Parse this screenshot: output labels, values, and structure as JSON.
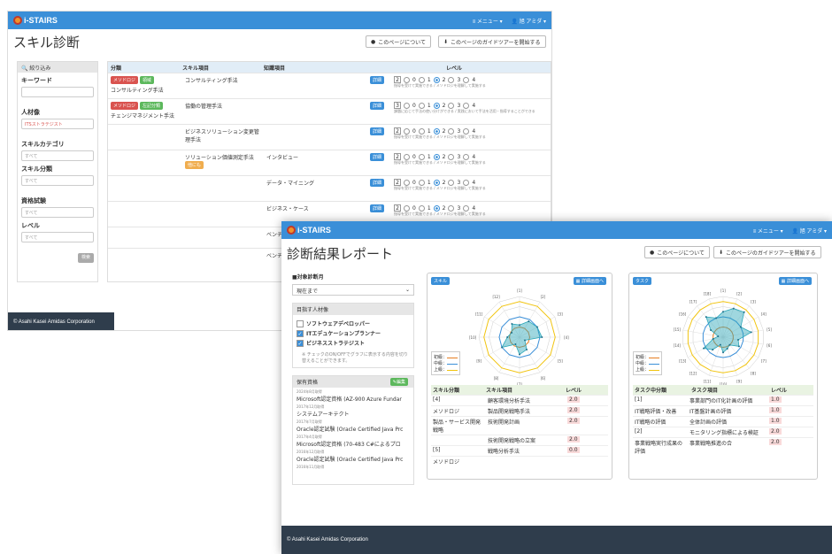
{
  "w1": {
    "logo": "i-STAIRS",
    "menu": "≡ メニュー ▾",
    "user": "👤 旭 アミダ ▾",
    "title": "スキル診断",
    "btn_about": "このページについて",
    "btn_tour": "このページのガイドツアーを開始する",
    "filter": {
      "head": "絞り込み",
      "keyword": "キーワード",
      "person": "人材像",
      "person_val": "ITSストラテジスト",
      "cat": "スキルカテゴリ",
      "cat_val": "すべて",
      "cls": "スキル分類",
      "cls_val": "すべて",
      "exam": "資格試験",
      "exam_val": "すべて",
      "level": "レベル",
      "level_val": "すべて",
      "search": "検索"
    },
    "cols": [
      "分類",
      "スキル項目",
      "知識項目",
      "レベル"
    ],
    "rows": [
      {
        "badges": [
          "メソドロジ",
          "領域"
        ],
        "cls": "コンサルティング手法",
        "skill": "コンサルティング手法",
        "know": "",
        "lv": "2",
        "sel": 2,
        "desc": "指導を受けて実施できる / メソドロジを理解して実施する"
      },
      {
        "badges": [
          "メソドロジ",
          "左記分類"
        ],
        "cls": "チェンジマネジメント手法",
        "skill": "協働の管理手法",
        "know": "",
        "lv": "3",
        "sel": 2,
        "desc": "課題に応じて手法の使い分けができる / 実践において手法を活用・指導することができる"
      },
      {
        "badges": [],
        "cls": "",
        "skill": "ビジネスソリューション変更管理手法",
        "know": "",
        "lv": "2",
        "sel": 2,
        "desc": "指導を受けて実施できる / メソドロジを理解して実施する"
      },
      {
        "badges": [],
        "cls": "",
        "skill": "ソリューション価値測定手法",
        "skill_badge": "他にも",
        "know": "インタビュー",
        "lv": "2",
        "sel": 2,
        "desc": "指導を受けて実施できる / メソドロジを理解して実施する"
      },
      {
        "badges": [],
        "cls": "",
        "skill": "",
        "know": "データ・マイニング",
        "lv": "2",
        "sel": 2,
        "desc": "指導を受けて実施できる / メソドロジを理解して実施する"
      },
      {
        "badges": [],
        "cls": "",
        "skill": "",
        "know": "ビジネス・ケース",
        "lv": "2",
        "sel": 2,
        "desc": "指導を受けて実施できる / メソドロジを理解して実施する"
      },
      {
        "badges": [],
        "cls": "",
        "skill": "",
        "know": "ベンチ",
        "lv": "",
        "sel": 0,
        "desc": ""
      },
      {
        "badges": [],
        "cls": "",
        "skill": "",
        "know": "ベンチ",
        "lv": "",
        "sel": 0,
        "desc": ""
      }
    ],
    "detail": "詳細",
    "footer": "© Asahi Kasei Amidas Corporation"
  },
  "w2": {
    "logo": "i-STAIRS",
    "menu": "≡ メニュー ▾",
    "user": "👤 旭 アミダ ▾",
    "title": "診断結果レポート",
    "btn_about": "このページについて",
    "btn_tour": "このページのガイドツアーを開始する",
    "target_label": "■対象診断月",
    "target_val": "現在まで",
    "aim_head": "目指す人材像",
    "aims": [
      {
        "label": "ソフトウェアデベロッパー",
        "checked": false
      },
      {
        "label": "ITエデュケーションプランナー",
        "checked": true
      },
      {
        "label": "ビジネスストラテジスト",
        "checked": true
      }
    ],
    "aim_note": "※ チェックのON/OFFでグラフに表示する内容を切り替えることができます。",
    "cert_head": "保有資格",
    "cert_edit": "編集",
    "certs": [
      {
        "date": "2024年8月取得",
        "name": "Microsoft認定資格 (AZ-900 Azure Fundar"
      },
      {
        "date": "2017年12月取得",
        "name": "システムアーキテクト"
      },
      {
        "date": "2017年7月取得",
        "name": "Oracle認定試験 (Oracle Certified Java Prc"
      },
      {
        "date": "2017年4月取得",
        "name": "Microsoft認定資格 (70-483 C#によるプロ"
      },
      {
        "date": "2016年12月取得",
        "name": "Oracle認定試験 (Oracle Certified Java Prc"
      },
      {
        "date": "2016年11月取得",
        "name": ""
      }
    ],
    "skill_tab": "スキル",
    "task_tab": "タスク",
    "detail_btn": "詳細画面へ",
    "legend": [
      "初級：",
      "中級：",
      "上級："
    ],
    "skill_cols": [
      "スキル分類",
      "スキル項目",
      "レベル"
    ],
    "skill_rows": [
      {
        "cls": "[4]",
        "item": "顧客環境分析手法",
        "lv": "2.0"
      },
      {
        "cls": "メソドロジ",
        "item": "製品開発戦略手法",
        "lv": "2.0"
      },
      {
        "cls": "製品・サービス開発戦略",
        "item": "技術開発計画",
        "lv": "2.0"
      },
      {
        "cls": "",
        "item": "技術開発戦略の立案",
        "lv": "2.0"
      },
      {
        "cls": "[5]",
        "item": "戦略分析手法",
        "lv": "0.0"
      },
      {
        "cls": "メソドロジ",
        "item": "",
        "lv": ""
      }
    ],
    "task_cols": [
      "タスク中分類",
      "タスク項目",
      "レベル"
    ],
    "task_rows": [
      {
        "cls": "[1]",
        "item": "事業部門のIT化計画の評価",
        "lv": "1.0"
      },
      {
        "cls": "IT戦略評価・改善",
        "item": "IT基盤計画の評価",
        "lv": "1.0"
      },
      {
        "cls": "IT戦略の評価",
        "item": "全体計画の評価",
        "lv": "1.0"
      },
      {
        "cls": "[2]",
        "item": "モニタリング指標による検証",
        "lv": "2.0"
      },
      {
        "cls": "事業戦略実行成果の評価",
        "item": "事業戦略推進の合",
        "lv": "2.0"
      }
    ],
    "footer": "© Asahi Kasei Amidas Corporation"
  },
  "colors": {
    "blue": "#3a8fd8",
    "footer": "#2f3d4c",
    "beginner": "#e67e22",
    "mid": "#3a8fd8",
    "adv": "#f1c40f",
    "teal": "#2aa7b8"
  },
  "chart_data": [
    {
      "type": "radar",
      "title": "スキル",
      "axes": [
        "[1]",
        "[2]",
        "[3]",
        "[4]",
        "[5]",
        "[6]",
        "[7]",
        "[8]",
        "[9]",
        "[10]",
        "[11]",
        "[12]"
      ],
      "series": [
        {
          "name": "初級",
          "values": [
            1,
            1,
            1,
            1,
            1,
            1,
            1,
            1,
            1,
            1,
            1,
            1
          ]
        },
        {
          "name": "中級",
          "values": [
            2,
            2,
            2,
            2,
            2,
            2,
            2,
            2,
            2,
            2,
            2,
            2
          ]
        },
        {
          "name": "上級",
          "values": [
            3.5,
            3.5,
            3.5,
            3.5,
            3.5,
            3.5,
            3.5,
            3.5,
            3.5,
            3.5,
            3.5,
            3.5
          ]
        },
        {
          "name": "",
          "values": [
            1.2,
            1.8,
            2.0,
            2.2,
            0.6,
            1.4,
            1.7,
            0.8,
            2.0,
            1.2,
            0.9,
            1.5
          ]
        }
      ],
      "max": 4
    },
    {
      "type": "radar",
      "title": "タスク",
      "axes": [
        "[1]",
        "[2]",
        "[3]",
        "[4]",
        "[5]",
        "[6]",
        "[7]",
        "[8]",
        "[9]",
        "[10]",
        "[11]",
        "[12]",
        "[13]",
        "[14]",
        "[15]",
        "[16]",
        "[17]",
        "[18]"
      ],
      "series": [
        {
          "name": "初級",
          "values": [
            1,
            1,
            1,
            1,
            1,
            1,
            1,
            1,
            1,
            1,
            1,
            1,
            1,
            1,
            1,
            1,
            1,
            1
          ]
        },
        {
          "name": "中級",
          "values": [
            2,
            2,
            2,
            2,
            2,
            2,
            2,
            2,
            2,
            2,
            2,
            2,
            2,
            2,
            2,
            2,
            2,
            2
          ]
        },
        {
          "name": "上級",
          "values": [
            3.5,
            3.5,
            3.5,
            3.5,
            3.5,
            3.5,
            3.5,
            3.5,
            3.5,
            3.5,
            3.5,
            3.5,
            3.5,
            3.5,
            3.5,
            3.5,
            3.5,
            3.5
          ]
        },
        {
          "name": "",
          "values": [
            2.5,
            3.0,
            3.2,
            2.0,
            2.8,
            1.5,
            1.8,
            1.0,
            1.2,
            1.5,
            0.8,
            1.6,
            2.2,
            1.0,
            0.5,
            1.4,
            2.6,
            2.0
          ]
        }
      ],
      "max": 4
    }
  ]
}
